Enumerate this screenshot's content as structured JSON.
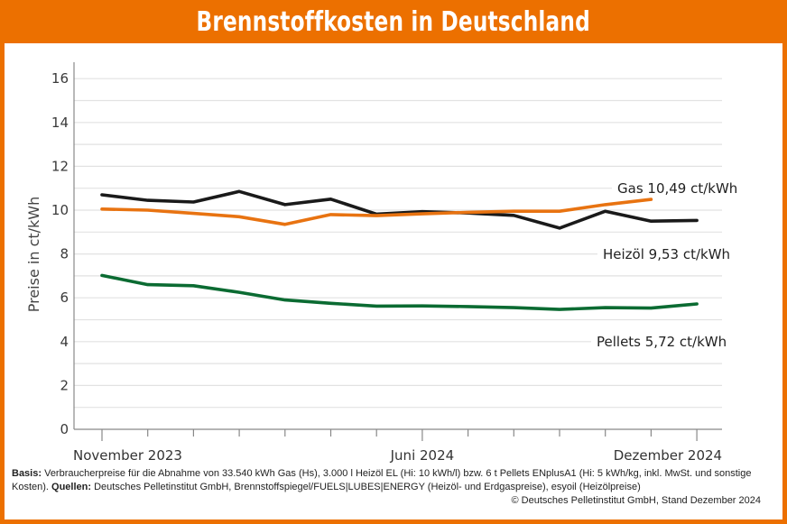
{
  "header": {
    "title": "Brennstoffkosten in Deutschland"
  },
  "colors": {
    "brand": "#ec7000",
    "gas": "#e87311",
    "heizoel": "#1a1a1a",
    "pellets": "#0b6b32",
    "grid": "#e2e2e2",
    "axis": "#888888"
  },
  "footnote": {
    "basis_label": "Basis:",
    "basis_text": " Verbraucherpreise für die Abnahme von 33.540 kWh Gas (Hs), 3.000 l Heizöl EL (Hi: 10 kWh/l) bzw. 6 t Pellets ENplusA1 (Hi: 5 kWh/kg, inkl. MwSt. und sonstige Kosten). ",
    "sources_label": "Quellen:",
    "sources_text": " Deutsches Pelletinstitut GmbH, Brennstoffspiegel/FUELS|LUBES|ENERGY (Heizöl- und Erdgaspreise), esyoil (Heizölpreise)",
    "copyright": "© Deutsches Pelletinstitut GmbH, Stand Dezember 2024"
  },
  "chart_data": {
    "type": "line",
    "title": "Brennstoffkosten in Deutschland",
    "xlabel": "",
    "ylabel": "Preise in ct/kWh",
    "ylim": [
      0,
      16.7
    ],
    "yticks": [
      0,
      2,
      4,
      6,
      8,
      10,
      12,
      14,
      16
    ],
    "grid": true,
    "grid_step": 1,
    "x": [
      "Nov 2023",
      "Dez 2023",
      "Jan 2024",
      "Feb 2024",
      "Mär 2024",
      "Apr 2024",
      "Mai 2024",
      "Jun 2024",
      "Jul 2024",
      "Aug 2024",
      "Sep 2024",
      "Okt 2024",
      "Nov 2024",
      "Dez 2024"
    ],
    "x_tick_labels": [
      {
        "index": 0,
        "label": "November 2023"
      },
      {
        "index": 7,
        "label": "Juni 2024"
      },
      {
        "index": 13,
        "label": "Dezember 2024"
      }
    ],
    "series": [
      {
        "name": "Heizöl",
        "label": "Heizöl  9,53 ct/kWh",
        "color_key": "heizoel",
        "values": [
          10.7,
          10.45,
          10.37,
          10.85,
          10.25,
          10.5,
          9.82,
          9.93,
          9.87,
          9.76,
          9.18,
          9.95,
          9.5,
          9.53
        ]
      },
      {
        "name": "Gas",
        "label": "Gas 10,49 ct/kWh",
        "color_key": "gas",
        "values": [
          10.05,
          10.0,
          9.85,
          9.7,
          9.35,
          9.8,
          9.75,
          9.83,
          9.9,
          9.95,
          9.95,
          10.25,
          10.49,
          null
        ]
      },
      {
        "name": "Pellets",
        "label": "Pellets  5,72 ct/kWh",
        "color_key": "pellets",
        "values": [
          7.02,
          6.6,
          6.55,
          6.25,
          5.9,
          5.75,
          5.62,
          5.63,
          5.6,
          5.55,
          5.47,
          5.55,
          5.53,
          5.72
        ]
      }
    ],
    "legend": "inline-right"
  }
}
